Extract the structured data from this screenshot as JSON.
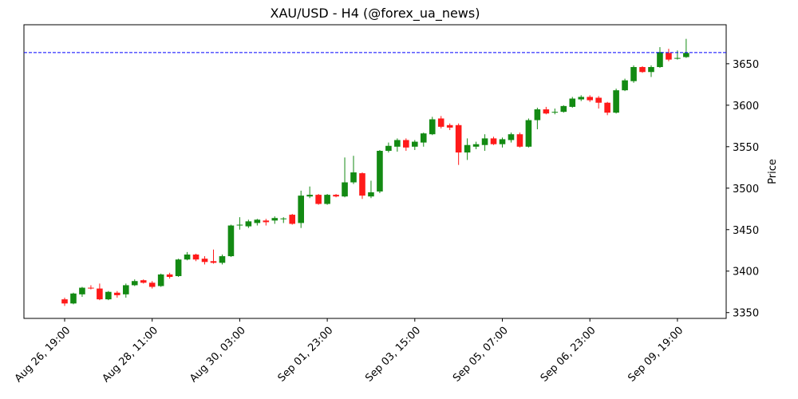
{
  "chart_data": {
    "type": "candlestick",
    "title": "XAU/USD - H4 (@forex_ua_news)",
    "y_label": "Price",
    "categories": [
      "Aug 26, 19:00",
      null,
      null,
      null,
      null,
      null,
      null,
      null,
      null,
      null,
      "Aug 28, 11:00",
      null,
      null,
      null,
      null,
      null,
      null,
      null,
      null,
      null,
      "Aug 30, 03:00",
      null,
      null,
      null,
      null,
      null,
      null,
      null,
      null,
      null,
      "Sep 01, 23:00",
      null,
      null,
      null,
      null,
      null,
      null,
      null,
      null,
      null,
      "Sep 03, 15:00",
      null,
      null,
      null,
      null,
      null,
      null,
      null,
      null,
      null,
      "Sep 05, 07:00",
      null,
      null,
      null,
      null,
      null,
      null,
      null,
      null,
      null,
      "Sep 06, 23:00",
      null,
      null,
      null,
      null,
      null,
      null,
      null,
      null,
      null,
      "Sep 09, 19:00",
      null
    ],
    "open": [
      3366,
      3361,
      3372,
      3380,
      3379,
      3366,
      3374,
      3372,
      3383,
      3389,
      3386,
      3382,
      3396,
      3394,
      3414,
      3420,
      3415,
      3412,
      3410,
      3418,
      3455,
      3454,
      3458,
      3461,
      3461,
      3463,
      3468,
      3458,
      3490,
      3492,
      3481,
      3492,
      3490,
      3507,
      3518,
      3490,
      3496,
      3545,
      3550,
      3558,
      3550,
      3555,
      3565,
      3584,
      3576,
      3576,
      3543,
      3550,
      3552,
      3560,
      3553,
      3558,
      3565,
      3550,
      3582,
      3595,
      3591,
      3592,
      3598,
      3607,
      3610,
      3609,
      3603,
      3591,
      3618,
      3629,
      3646,
      3640,
      3646,
      3663,
      3656,
      3658
    ],
    "high": [
      3368,
      3374,
      3381,
      3383,
      3385,
      3376,
      3376,
      3385,
      3390,
      3390,
      3388,
      3397,
      3398,
      3415,
      3423,
      3421,
      3418,
      3426,
      3420,
      3456,
      3465,
      3462,
      3463,
      3463,
      3466,
      3465,
      3469,
      3497,
      3502,
      3493,
      3493,
      3493,
      3537,
      3539,
      3519,
      3509,
      3546,
      3555,
      3560,
      3560,
      3558,
      3567,
      3586,
      3587,
      3578,
      3578,
      3560,
      3556,
      3565,
      3562,
      3561,
      3567,
      3567,
      3584,
      3597,
      3598,
      3596,
      3600,
      3610,
      3612,
      3612,
      3611,
      3604,
      3620,
      3632,
      3648,
      3647,
      3648,
      3670,
      3668,
      3666,
      3680
    ],
    "low": [
      3358,
      3360,
      3369,
      3378,
      3365,
      3365,
      3368,
      3368,
      3382,
      3385,
      3379,
      3381,
      3391,
      3393,
      3413,
      3412,
      3408,
      3409,
      3408,
      3417,
      3450,
      3452,
      3455,
      3455,
      3457,
      3458,
      3456,
      3452,
      3488,
      3480,
      3480,
      3489,
      3489,
      3505,
      3487,
      3488,
      3494,
      3543,
      3544,
      3545,
      3546,
      3550,
      3564,
      3572,
      3570,
      3528,
      3534,
      3547,
      3545,
      3552,
      3549,
      3555,
      3549,
      3549,
      3571,
      3589,
      3589,
      3591,
      3597,
      3605,
      3604,
      3596,
      3588,
      3590,
      3617,
      3627,
      3639,
      3634,
      3645,
      3653,
      3655,
      3657
    ],
    "close": [
      3361,
      3373,
      3380,
      3379,
      3366,
      3375,
      3371,
      3383,
      3388,
      3386,
      3381,
      3396,
      3393,
      3414,
      3420,
      3414,
      3411,
      3410,
      3418,
      3455,
      3456,
      3460,
      3462,
      3459,
      3464,
      3463.5,
      3457,
      3491,
      3492,
      3481,
      3492,
      3490,
      3507,
      3519,
      3491,
      3495,
      3545,
      3551,
      3558,
      3549,
      3556,
      3566,
      3583,
      3574,
      3573,
      3543,
      3552,
      3553,
      3560,
      3553,
      3559,
      3565,
      3550,
      3582,
      3595,
      3590,
      3592,
      3599,
      3608,
      3610,
      3606,
      3603,
      3591,
      3618,
      3630,
      3646,
      3640,
      3646,
      3664,
      3655,
      3657,
      3663
    ],
    "up_color": "#138a13",
    "down_color": "#ff1a1a",
    "ylim": [
      3343,
      3697
    ],
    "yticks": [
      3350,
      3400,
      3450,
      3500,
      3550,
      3600,
      3650
    ],
    "y_axis_side": "right",
    "reference_line": {
      "value": 3663.5,
      "color": "#0000ff"
    }
  }
}
